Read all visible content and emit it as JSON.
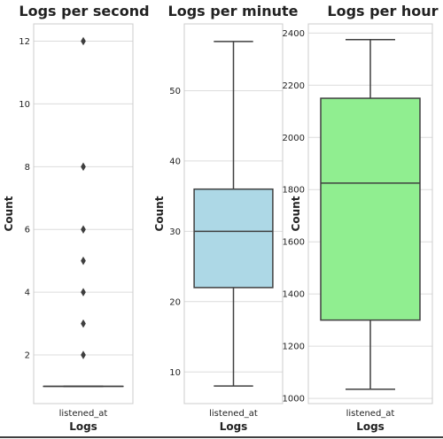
{
  "chart_data": [
    {
      "type": "box",
      "title": "Logs per second",
      "xlabel": "Logs",
      "ylabel": "Count",
      "categories": [
        "listened_at"
      ],
      "ylim": [
        0.45,
        12.55
      ],
      "yticks": [
        2,
        4,
        6,
        8,
        10,
        12
      ],
      "box": {
        "q1": 1,
        "median": 1,
        "q3": 1,
        "whisker_low": 1,
        "whisker_high": 1
      },
      "outliers": [
        2,
        3,
        4,
        5,
        6,
        8,
        12
      ],
      "color": "#1f77b4",
      "grid": true
    },
    {
      "type": "box",
      "title": "Logs per minute",
      "xlabel": "Logs",
      "ylabel": "Count",
      "categories": [
        "listened_at"
      ],
      "ylim": [
        5.5,
        59.5
      ],
      "yticks": [
        10,
        20,
        30,
        40,
        50
      ],
      "box": {
        "q1": 22,
        "median": 30,
        "q3": 36,
        "whisker_low": 8,
        "whisker_high": 57
      },
      "outliers": [],
      "color": "#add8e6",
      "grid": true
    },
    {
      "type": "box",
      "title": "Logs per hour",
      "xlabel": "Logs",
      "ylabel": "Count",
      "categories": [
        "listened_at"
      ],
      "ylim": [
        980,
        2435
      ],
      "yticks": [
        1000,
        1200,
        1400,
        1600,
        1800,
        2000,
        2200,
        2400
      ],
      "box": {
        "q1": 1300,
        "median": 1825,
        "q3": 2150,
        "whisker_low": 1035,
        "whisker_high": 2375
      },
      "outliers": [],
      "color": "#90ee90",
      "grid": true
    }
  ]
}
